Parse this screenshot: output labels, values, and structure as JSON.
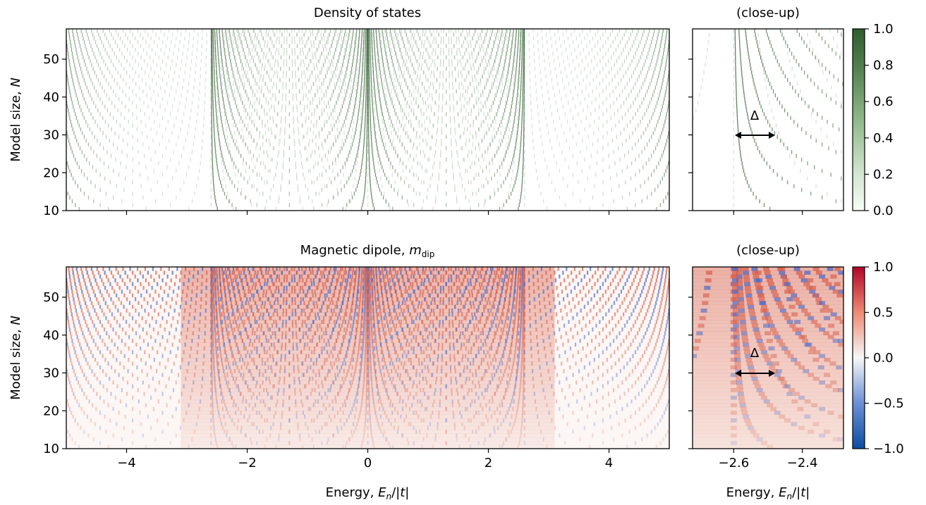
{
  "chart_data": [
    {
      "id": "dos_main",
      "type": "heatmap",
      "title": "Density of states",
      "xlabel": "",
      "ylabel": "Model size, N",
      "xlim": [
        -5,
        5
      ],
      "ylim": [
        10,
        58
      ],
      "xticks": [
        -4,
        -2,
        0,
        2,
        4
      ],
      "yticks": [
        10,
        20,
        30,
        40,
        50
      ],
      "xtick_labels_visible": false,
      "colormap": "Greens",
      "band_edges": [
        -2.6,
        0,
        2.6
      ],
      "levels_pattern": "E_n(N) = 2.6*cos(pi*n/(N+1)) ± 2.6 and 0-centred arcs; vertical bands of states, dense near |E|=2.6 and E=0"
    },
    {
      "id": "dos_closeup",
      "type": "heatmap",
      "title": "(close-up)",
      "xlim": [
        -2.72,
        -2.28
      ],
      "ylim": [
        10,
        58
      ],
      "xticks": [
        -2.6,
        -2.4
      ],
      "yticks": [
        10,
        20,
        30,
        40,
        50
      ],
      "annotation": {
        "text": "Δ",
        "arrow_from": [
          -2.6,
          30
        ],
        "arrow_to": [
          -2.49,
          30
        ]
      },
      "colorbar": {
        "ticks": [
          0.0,
          0.2,
          0.4,
          0.6,
          0.8,
          1.0
        ],
        "range": [
          0,
          1
        ]
      }
    },
    {
      "id": "mdip_main",
      "type": "heatmap",
      "title": "Magnetic dipole, m_dip",
      "xlabel": "Energy, E_n/|t|",
      "ylabel": "Model size, N",
      "xlim": [
        -5,
        5
      ],
      "ylim": [
        10,
        58
      ],
      "xticks": [
        -4,
        -2,
        0,
        2,
        4
      ],
      "yticks": [
        10,
        20,
        30,
        40,
        50
      ],
      "colormap": "coolwarm (blue negative, red positive)"
    },
    {
      "id": "mdip_closeup",
      "type": "heatmap",
      "title": "(close-up)",
      "xlabel": "Energy, E_n/|t|",
      "xlim": [
        -2.72,
        -2.28
      ],
      "ylim": [
        10,
        58
      ],
      "xticks": [
        -2.6,
        -2.4
      ],
      "yticks": [
        10,
        20,
        30,
        40,
        50
      ],
      "annotation": {
        "text": "Δ",
        "arrow_from": [
          -2.6,
          30
        ],
        "arrow_to": [
          -2.49,
          30
        ]
      },
      "colorbar": {
        "ticks": [
          -1.0,
          -0.5,
          0.0,
          0.5,
          1.0
        ],
        "range": [
          -1,
          1
        ]
      }
    }
  ],
  "labels": {
    "title_dos": "Density of states",
    "title_close": "(close-up)",
    "title_mdip_pre": "Magnetic dipole, ",
    "ylabel_pre": "Model size, ",
    "ylabel_var": "N",
    "xlabel_pre": "Energy, ",
    "xlabel_var": "E",
    "xlabel_sub": "n",
    "xlabel_post": "/|",
    "xlabel_t": "t",
    "xlabel_end": "|",
    "m_var": "m",
    "m_sub": "dip",
    "delta": "Δ"
  },
  "main_xticks": [
    "−4",
    "−2",
    "0",
    "2",
    "4"
  ],
  "close_xticks": [
    "−2.6",
    "−2.4"
  ],
  "yticks": [
    "10",
    "20",
    "30",
    "40",
    "50"
  ],
  "cbar_dos_ticks": [
    "1.0",
    "0.8",
    "0.6",
    "0.4",
    "0.2",
    "0.0"
  ],
  "cbar_mdip_ticks": [
    "1.0",
    "0.5",
    "0.0",
    "−0.5",
    "−1.0"
  ],
  "colors": {
    "dos_dark": "#2b5a2b",
    "pos": "#d6604d",
    "neg": "#4a66c6",
    "cbar_dos_top": "#2e5e2e",
    "cbar_mdip_top": "#b40426",
    "cbar_mdip_bottom": "#0b4ea2"
  }
}
